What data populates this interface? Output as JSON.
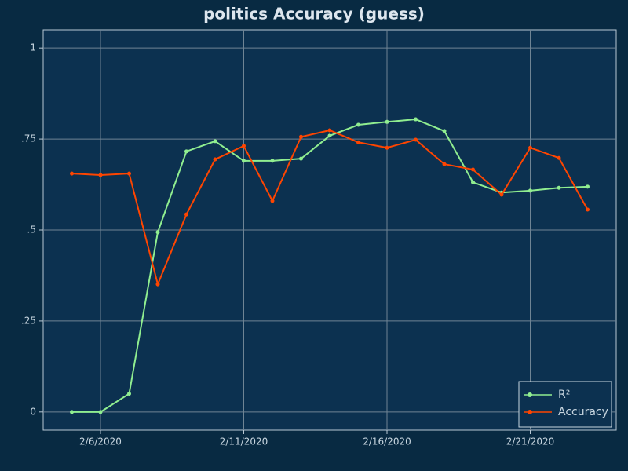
{
  "chart_data": {
    "type": "line",
    "title": "politics Accuracy (guess)",
    "x": [
      "2/5/2020",
      "2/6/2020",
      "2/7/2020",
      "2/8/2020",
      "2/9/2020",
      "2/10/2020",
      "2/11/2020",
      "2/12/2020",
      "2/13/2020",
      "2/14/2020",
      "2/15/2020",
      "2/16/2020",
      "2/17/2020",
      "2/18/2020",
      "2/19/2020",
      "2/20/2020",
      "2/21/2020",
      "2/22/2020",
      "2/23/2020"
    ],
    "series": [
      {
        "name": "R²",
        "color": "#90ee90",
        "values": [
          0,
          0,
          0.05,
          0.494,
          0.716,
          0.744,
          0.69,
          0.69,
          0.696,
          0.759,
          0.789,
          0.797,
          0.804,
          0.772,
          0.631,
          0.603,
          0.608,
          0.616,
          0.619
        ]
      },
      {
        "name": "Accuracy",
        "color": "#ff4500",
        "values": [
          0.655,
          0.651,
          0.655,
          0.351,
          0.543,
          0.694,
          0.731,
          0.58,
          0.756,
          0.774,
          0.741,
          0.726,
          0.748,
          0.681,
          0.666,
          0.597,
          0.726,
          0.698,
          0.556
        ]
      }
    ],
    "xlim": [
      "2/4/2020",
      "2/24/2020"
    ],
    "xticks": [
      "2/6/2020",
      "2/11/2020",
      "2/16/2020",
      "2/21/2020"
    ],
    "ylim": [
      -0.05,
      1.05
    ],
    "yticks": [
      0,
      {
        "value": 0.25,
        "label": ".25"
      },
      {
        "value": 0.5,
        "label": ".5"
      },
      {
        "value": 0.75,
        "label": ".75"
      },
      1
    ],
    "grid": true,
    "legend": "lower right"
  }
}
